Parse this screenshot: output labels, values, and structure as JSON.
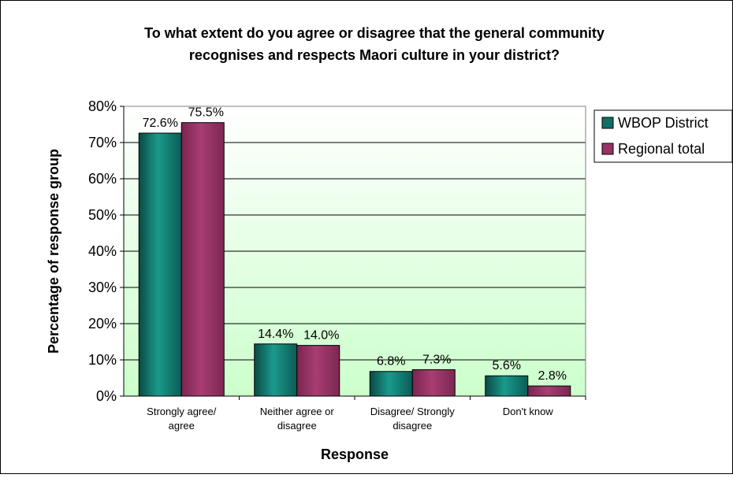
{
  "chart_data": {
    "type": "bar",
    "title_line1": "To what extent do you agree or disagree that the general community",
    "title_line2": "recognises and respects Maori culture in your district?",
    "xlabel": "Response",
    "ylabel": "Percentage of response group",
    "ylim": [
      0,
      80
    ],
    "y_ticks": [
      "0%",
      "10%",
      "20%",
      "30%",
      "40%",
      "50%",
      "60%",
      "70%",
      "80%"
    ],
    "grid": true,
    "legend_position": "top-right",
    "categories": [
      [
        "Strongly agree/",
        "agree"
      ],
      [
        "Neither agree or",
        "disagree"
      ],
      [
        "Disagree/ Strongly",
        "disagree"
      ],
      [
        "Don't know"
      ]
    ],
    "series": [
      {
        "name": "WBOP District",
        "color": "#0f6f66",
        "values": [
          72.6,
          14.4,
          6.8,
          5.6
        ],
        "labels": [
          "72.6%",
          "14.4%",
          "6.8%",
          "5.6%"
        ]
      },
      {
        "name": "Regional total",
        "color": "#993366",
        "values": [
          75.5,
          14.0,
          7.3,
          2.8
        ],
        "labels": [
          "75.5%",
          "14.0%",
          "7.3%",
          "2.8%"
        ]
      }
    ],
    "plot_background": [
      "#ffffff",
      "#ccffcc"
    ]
  }
}
